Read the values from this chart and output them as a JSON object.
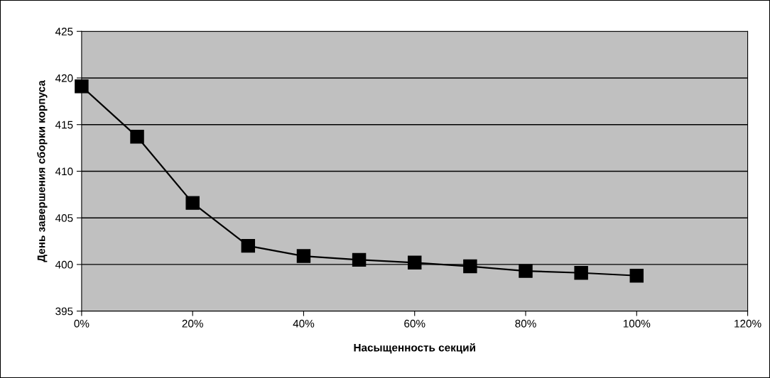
{
  "chart_data": {
    "type": "line",
    "xlabel": "Насыщенность секций",
    "ylabel": "День завершения сборки корпуса",
    "x": [
      0,
      10,
      20,
      30,
      40,
      50,
      60,
      70,
      80,
      90,
      100
    ],
    "series": [
      {
        "color": "#000000",
        "values": [
          419.1,
          413.7,
          406.6,
          402.0,
          400.9,
          400.5,
          400.2,
          399.8,
          399.3,
          399.1,
          398.8
        ]
      }
    ],
    "xlim": [
      0,
      120
    ],
    "xticks": [
      {
        "value": 0,
        "label": "0%"
      },
      {
        "value": 20,
        "label": "20%"
      },
      {
        "value": 40,
        "label": "40%"
      },
      {
        "value": 60,
        "label": "60%"
      },
      {
        "value": 80,
        "label": "80%"
      },
      {
        "value": 100,
        "label": "100%"
      },
      {
        "value": 120,
        "label": "120%"
      }
    ],
    "ylim": [
      395,
      425
    ],
    "yticks": [
      395,
      400,
      405,
      410,
      415,
      420,
      425
    ],
    "grid": "y",
    "legend": false,
    "marker": "square",
    "line_style": "solid"
  }
}
